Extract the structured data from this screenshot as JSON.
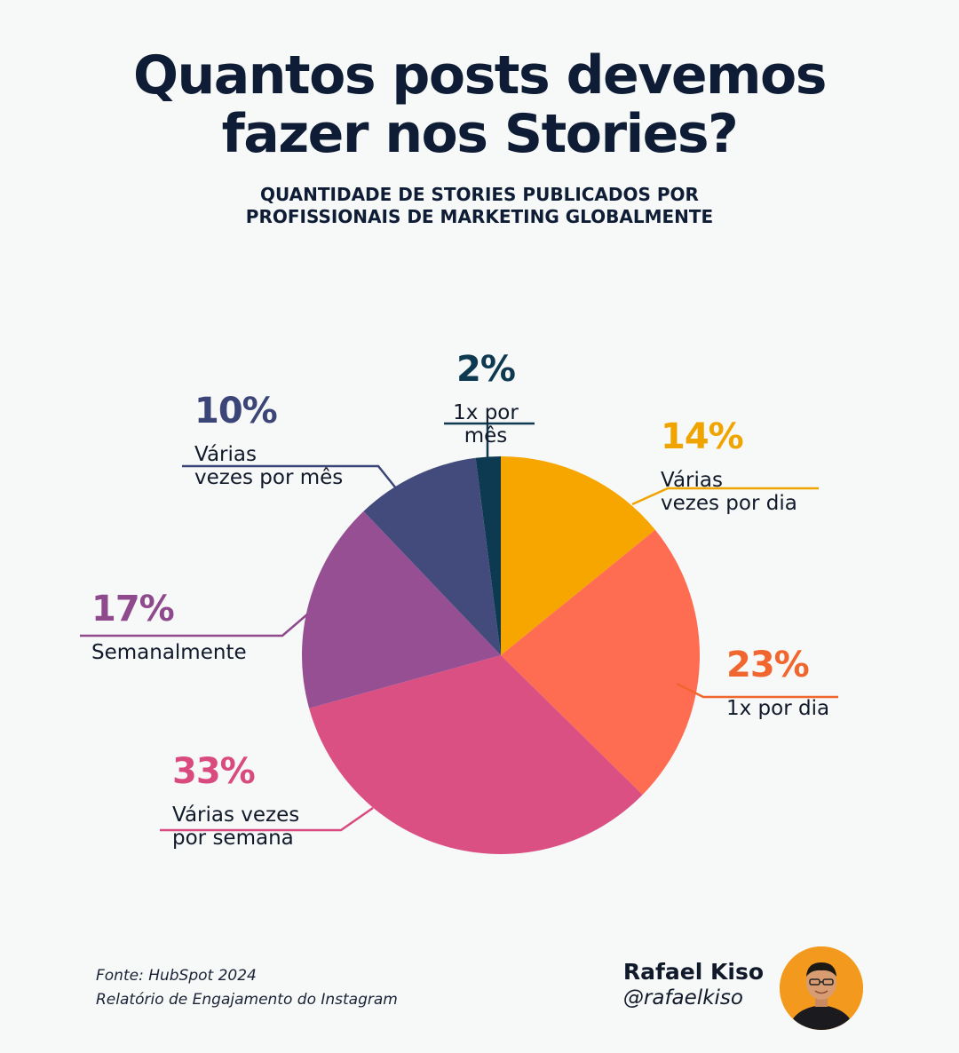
{
  "title": {
    "line1": "Quantos posts devemos",
    "line2": "fazer nos Stories?"
  },
  "subtitle": {
    "line1": "QUANTIDADE DE STORIES PUBLICADOS POR",
    "line2": "PROFISSIONAIS DE MARKETING GLOBALMENTE"
  },
  "chart_data": {
    "type": "pie",
    "slices": [
      {
        "key": "varias-dia",
        "value": 14,
        "pct_label": "14%",
        "label_lines": [
          "Várias",
          "vezes por dia"
        ],
        "color": "#f7a600",
        "label_color": "#f0a400"
      },
      {
        "key": "1x-dia",
        "value": 23,
        "pct_label": "23%",
        "label_lines": [
          "1x por dia"
        ],
        "color": "#fe6d52",
        "label_color": "#f0662e"
      },
      {
        "key": "varias-semana",
        "value": 33,
        "pct_label": "33%",
        "label_lines": [
          "Várias vezes",
          "por semana"
        ],
        "color": "#da5083",
        "label_color": "#d94a7e"
      },
      {
        "key": "semanalmente",
        "value": 17,
        "pct_label": "17%",
        "label_lines": [
          "Semanalmente"
        ],
        "color": "#964f92",
        "label_color": "#8e4a8c"
      },
      {
        "key": "varias-mes",
        "value": 10,
        "pct_label": "10%",
        "label_lines": [
          "Várias",
          "vezes por mês"
        ],
        "color": "#434b7c",
        "label_color": "#3c4577"
      },
      {
        "key": "1x-mes",
        "value": 2,
        "pct_label": "2%",
        "label_lines": [
          "1x por",
          "mês"
        ],
        "color": "#0e3a51",
        "label_color": "#0e3a51"
      }
    ]
  },
  "source": {
    "line1": "Fonte: HubSpot 2024",
    "line2": "Relatório de Engajamento do Instagram"
  },
  "author": {
    "name": "Rafael Kiso",
    "handle": "@rafaelkiso"
  }
}
